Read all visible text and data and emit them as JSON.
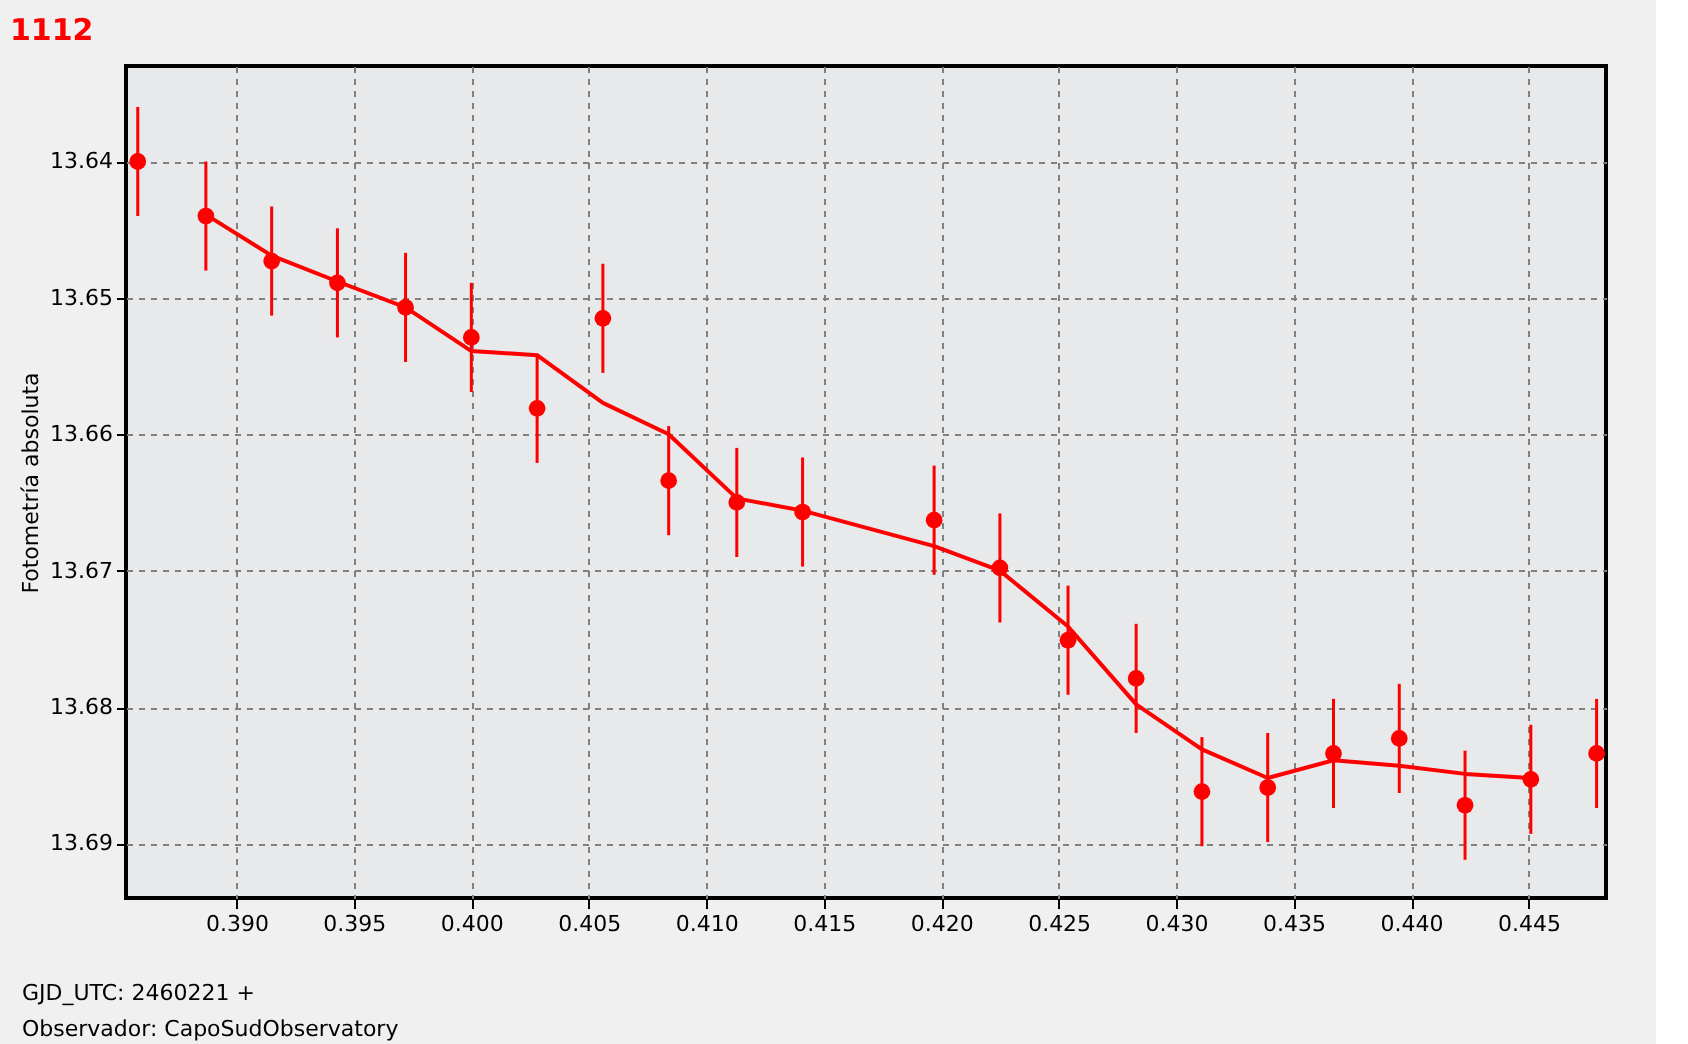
{
  "chart_data": {
    "type": "scatter",
    "title": "1112",
    "ylabel": "Fotometría absoluta",
    "annotations": [
      "GJD_UTC: 2460221 +",
      "Observador: CapoSudObservatory"
    ],
    "xlim": [
      0.3853,
      0.4483
    ],
    "ylim": [
      13.694,
      13.633
    ],
    "xticks": [
      {
        "value": 0.39,
        "label": "0.390"
      },
      {
        "value": 0.395,
        "label": "0.395"
      },
      {
        "value": 0.4,
        "label": "0.400"
      },
      {
        "value": 0.405,
        "label": "0.405"
      },
      {
        "value": 0.41,
        "label": "0.410"
      },
      {
        "value": 0.415,
        "label": "0.415"
      },
      {
        "value": 0.42,
        "label": "0.420"
      },
      {
        "value": 0.425,
        "label": "0.425"
      },
      {
        "value": 0.43,
        "label": "0.430"
      },
      {
        "value": 0.435,
        "label": "0.435"
      },
      {
        "value": 0.44,
        "label": "0.440"
      },
      {
        "value": 0.445,
        "label": "0.445"
      }
    ],
    "yticks": [
      13.64,
      13.65,
      13.66,
      13.67,
      13.68,
      13.69
    ],
    "grid": true,
    "legend": false,
    "series": [
      {
        "type": "scatter",
        "color": "#ff0000",
        "marker": "circle",
        "x": [
          0.3858,
          0.3887,
          0.3915,
          0.3943,
          0.3972,
          0.4,
          0.4028,
          0.4056,
          0.4084,
          0.4113,
          0.4141,
          0.4197,
          0.4225,
          0.4254,
          0.4283,
          0.4311,
          0.4339,
          0.4367,
          0.4395,
          0.4423,
          0.4451,
          0.4479
        ],
        "values": [
          13.64,
          13.644,
          13.6473,
          13.6489,
          13.6507,
          13.6529,
          13.6581,
          13.6515,
          13.6634,
          13.665,
          13.6657,
          13.6663,
          13.6698,
          13.6751,
          13.6779,
          13.6862,
          13.6859,
          13.6834,
          13.6823,
          13.6872,
          13.6853,
          13.6834
        ],
        "errors": [
          0.004,
          0.004,
          0.004,
          0.004,
          0.004,
          0.004,
          0.004,
          0.004,
          0.004,
          0.004,
          0.004,
          0.004,
          0.004,
          0.004,
          0.004,
          0.004,
          0.004,
          0.004,
          0.004,
          0.004,
          0.004,
          0.004
        ]
      },
      {
        "type": "line",
        "color": "#ff0000",
        "marker": "none",
        "line_style": "solid",
        "x": [
          0.3887,
          0.3915,
          0.3943,
          0.3972,
          0.4,
          0.4028,
          0.4056,
          0.4084,
          0.4113,
          0.4141,
          0.4197,
          0.4225,
          0.4254,
          0.4283,
          0.4311,
          0.4339,
          0.4367,
          0.4395,
          0.4423,
          0.4451
        ],
        "values": [
          13.6439,
          13.6469,
          13.6488,
          13.6507,
          13.6539,
          13.6542,
          13.6577,
          13.66,
          13.6647,
          13.6656,
          13.6682,
          13.67,
          13.6741,
          13.6798,
          13.6831,
          13.6852,
          13.6839,
          13.6843,
          13.6849,
          13.6852
        ]
      }
    ]
  }
}
